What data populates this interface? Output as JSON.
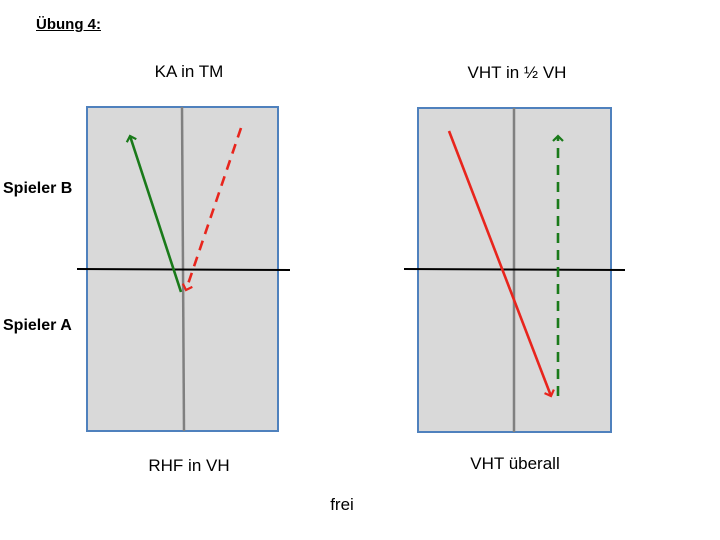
{
  "title": "Übung 4:",
  "players": {
    "b": "Spieler B",
    "a": "Spieler A"
  },
  "captions": {
    "left_top": "KA in TM",
    "right_top": "VHT in ½ VH",
    "left_bottom": "RHF in VH",
    "right_bottom": "VHT überall",
    "bottom_center": "frei"
  },
  "colors": {
    "court_fill": "#d9d9d9",
    "court_border": "#4f81bd",
    "center_line": "#808080",
    "net": "#000000",
    "green": "#1a7a1a",
    "red": "#e8251d"
  }
}
